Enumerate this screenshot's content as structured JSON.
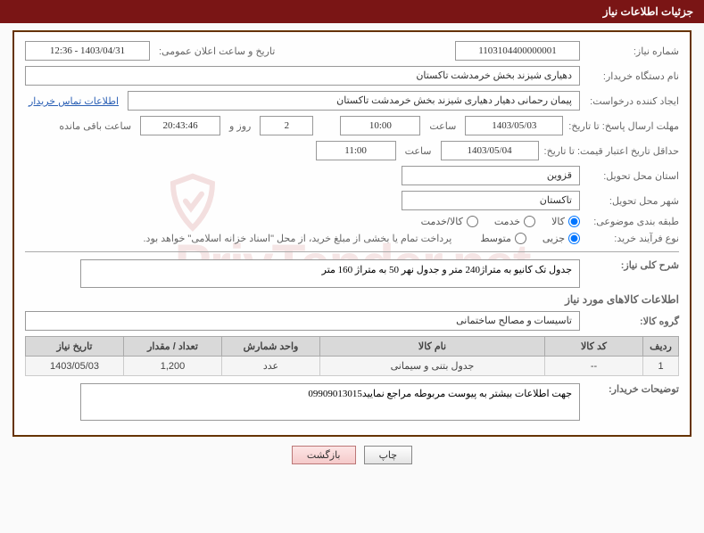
{
  "header": {
    "title": "جزئیات اطلاعات نیاز"
  },
  "labels": {
    "need_no": "شماره نیاز:",
    "announce_datetime": "تاریخ و ساعت اعلان عمومی:",
    "buyer_org": "نام دستگاه خریدار:",
    "requester": "ایجاد کننده درخواست:",
    "contact_link": "اطلاعات تماس خریدار",
    "deadline": "مهلت ارسال پاسخ: تا تاریخ:",
    "hour": "ساعت",
    "days_and": "روز و",
    "remaining": "ساعت باقی مانده",
    "validity": "حداقل تاریخ اعتبار قیمت: تا تاریخ:",
    "province": "استان محل تحویل:",
    "city": "شهر محل تحویل:",
    "category": "طبقه بندی موضوعی:",
    "purchase_type": "نوع فرآیند خرید:",
    "payment_note": "پرداخت تمام یا بخشی از مبلغ خرید، از محل \"اسناد خزانه اسلامی\" خواهد بود.",
    "overview": "شرح کلی نیاز:",
    "goods_info": "اطلاعات کالاهای مورد نیاز",
    "goods_group": "گروه کالا:",
    "buyer_notes": "توضیحات خریدار:"
  },
  "values": {
    "need_no": "1103104400000001",
    "announce_datetime": "1403/04/31 - 12:36",
    "buyer_org": "دهیاری شیزند بخش خرمدشت تاکستان",
    "requester": "پیمان رحمانی دهیار دهیاری شیزند بخش خرمدشت تاکستان",
    "deadline_date": "1403/05/03",
    "deadline_time": "10:00",
    "remaining_days": "2",
    "remaining_time": "20:43:46",
    "validity_date": "1403/05/04",
    "validity_time": "11:00",
    "province": "قزوین",
    "city": "تاکستان",
    "overview": "جدول تک کانیو به متراژ240 متر و جدول نهر 50 به متراژ 160 متر",
    "goods_group": "تاسیسات و مصالح ساختمانی",
    "buyer_notes": "جهت اطلاعات بیشتر به پیوست مربوطه مراجع نمایید09909013015"
  },
  "radios": {
    "category": {
      "options": [
        "کالا",
        "خدمت",
        "کالا/خدمت"
      ],
      "selected": 0
    },
    "purchase": {
      "options": [
        "جزیی",
        "متوسط"
      ],
      "selected": 0
    }
  },
  "table": {
    "headers": [
      "ردیف",
      "کد کالا",
      "نام کالا",
      "واحد شمارش",
      "تعداد / مقدار",
      "تاریخ نیاز"
    ],
    "rows": [
      {
        "idx": "1",
        "code": "--",
        "name": "جدول بتنی و سیمانی",
        "unit": "عدد",
        "qty": "1,200",
        "date": "1403/05/03"
      }
    ]
  },
  "buttons": {
    "print": "چاپ",
    "back": "بازگشت"
  },
  "watermark": "PrivTender.net",
  "colors": {
    "header_bg": "#7a1515",
    "frame_border": "#663300",
    "th_bg": "#d9d9d9"
  }
}
